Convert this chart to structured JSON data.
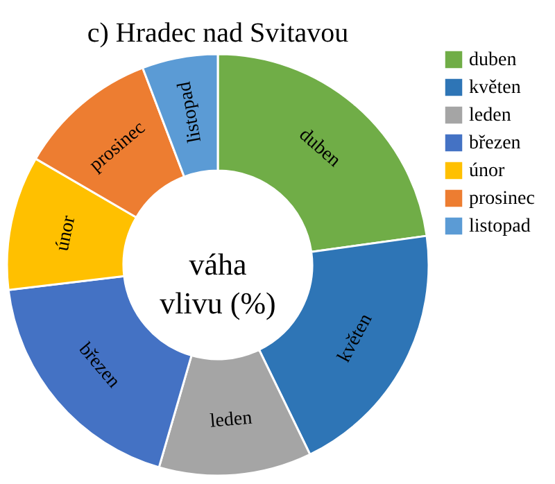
{
  "chart_data": {
    "type": "donut",
    "title": "c) Hradec nad Svitavou",
    "categories": [
      "duben",
      "květen",
      "leden",
      "březen",
      "únor",
      "prosinec",
      "listopad"
    ],
    "values": [
      22.8,
      20,
      11.7,
      18.6,
      10.3,
      10.8,
      5.8
    ],
    "colors": [
      "#70ad47",
      "#2e75b6",
      "#a5a5a5",
      "#4472c4",
      "#ffc000",
      "#ed7d31",
      "#5b9bd5"
    ],
    "annotations": [
      "váha vlivu (%)"
    ],
    "legend": "right"
  }
}
